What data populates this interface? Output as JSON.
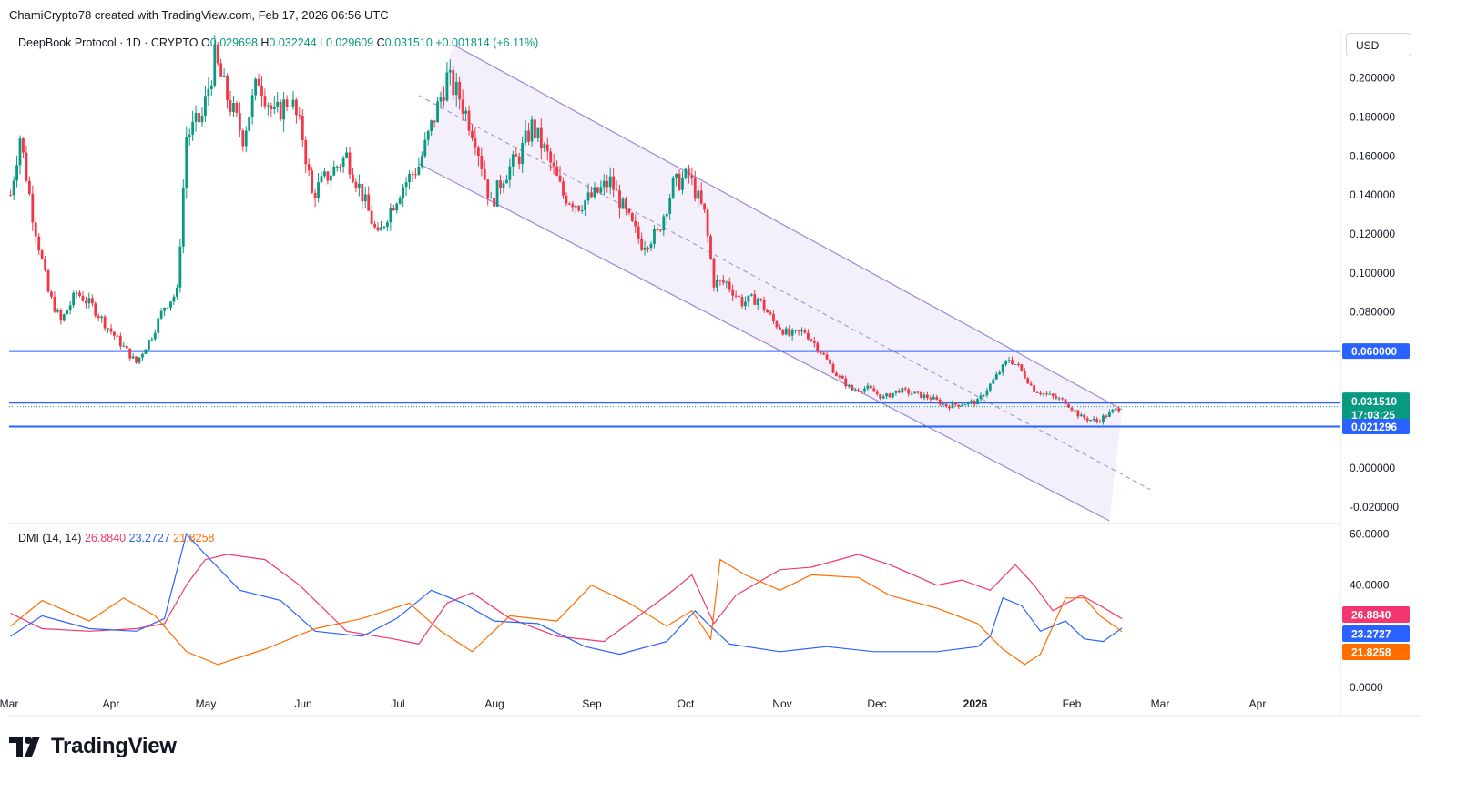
{
  "header": {
    "attribution": "ChamiCrypto78 created with TradingView.com, Feb 17, 2026 06:56 UTC",
    "currency_button": "USD",
    "brand": "TradingView"
  },
  "legend": {
    "symbol": "DeepBook Protocol · 1D · CRYPTO",
    "o_label": "O",
    "o_value": "0.029698",
    "h_label": "H",
    "h_value": "0.032244",
    "l_label": "L",
    "l_value": "0.029609",
    "c_label": "C",
    "c_value": "0.031510",
    "change": "+0.001814 (+6.11%)"
  },
  "dmi_legend": {
    "name": "DMI (14, 14)",
    "adx": "26.8840",
    "plus_di": "23.2727",
    "minus_di": "21.8258"
  },
  "chart_data": [
    {
      "type": "candlestick",
      "title": "DeepBook Protocol · 1D · CRYPTO",
      "xlabel": "",
      "ylabel": "",
      "x_ticks": [
        "Mar",
        "Apr",
        "May",
        "Jun",
        "Jul",
        "Aug",
        "Sep",
        "Oct",
        "Nov",
        "Dec",
        "2026",
        "Feb",
        "Mar",
        "Apr"
      ],
      "y_ticks": [
        "0.200000",
        "0.180000",
        "0.160000",
        "0.140000",
        "0.120000",
        "0.100000",
        "0.080000",
        "0.060000",
        "0.000000",
        "-0.020000"
      ],
      "ylim": [
        -0.027,
        0.225
      ],
      "grid": false,
      "colors": {
        "up": "#089981",
        "down": "#f23645",
        "level": "#2962ff",
        "channel": "#9c88d8",
        "channel_fill": "#f3f0fb"
      },
      "price_labels": [
        {
          "value": "0.060000",
          "color": "#2962ff"
        },
        {
          "value": "0.033541",
          "color": "#2962ff"
        },
        {
          "value": "0.031510",
          "color": "#089981"
        },
        {
          "value": "17:03:25",
          "color": "#089981"
        },
        {
          "value": "0.021296",
          "color": "#2962ff"
        }
      ],
      "horizontal_levels": [
        0.06,
        0.033541,
        0.021296
      ],
      "last_price": 0.03151,
      "descending_channel": {
        "upper": [
          [
            "2025-07-19",
            0.217
          ],
          [
            "2026-02-17",
            0.03
          ]
        ],
        "middle": [
          [
            "2025-07-08",
            0.191
          ],
          [
            "2026-02-26",
            -0.011
          ]
        ],
        "lower": [
          [
            "2025-07-08",
            0.156
          ],
          [
            "2026-02-13",
            -0.027
          ]
        ]
      },
      "close_series": [
        [
          "2025-02-28",
          0.14
        ],
        [
          "2025-03-03",
          0.17
        ],
        [
          "2025-03-07",
          0.13
        ],
        [
          "2025-03-12",
          0.09
        ],
        [
          "2025-03-16",
          0.075
        ],
        [
          "2025-03-21",
          0.09
        ],
        [
          "2025-03-26",
          0.083
        ],
        [
          "2025-03-31",
          0.072
        ],
        [
          "2025-04-04",
          0.064
        ],
        [
          "2025-04-09",
          0.054
        ],
        [
          "2025-04-14",
          0.068
        ],
        [
          "2025-04-18",
          0.083
        ],
        [
          "2025-04-22",
          0.09
        ],
        [
          "2025-04-25",
          0.17
        ],
        [
          "2025-04-30",
          0.18
        ],
        [
          "2025-05-04",
          0.21
        ],
        [
          "2025-05-08",
          0.19
        ],
        [
          "2025-05-13",
          0.17
        ],
        [
          "2025-05-18",
          0.2
        ],
        [
          "2025-05-23",
          0.18
        ],
        [
          "2025-05-28",
          0.19
        ],
        [
          "2025-06-01",
          0.17
        ],
        [
          "2025-06-04",
          0.14
        ],
        [
          "2025-06-09",
          0.15
        ],
        [
          "2025-06-15",
          0.16
        ],
        [
          "2025-06-20",
          0.14
        ],
        [
          "2025-06-25",
          0.118
        ],
        [
          "2025-06-28",
          0.13
        ],
        [
          "2025-07-03",
          0.145
        ],
        [
          "2025-07-08",
          0.155
        ],
        [
          "2025-07-13",
          0.18
        ],
        [
          "2025-07-17",
          0.2
        ],
        [
          "2025-07-21",
          0.19
        ],
        [
          "2025-07-26",
          0.17
        ],
        [
          "2025-07-31",
          0.135
        ],
        [
          "2025-08-04",
          0.15
        ],
        [
          "2025-08-09",
          0.16
        ],
        [
          "2025-08-13",
          0.175
        ],
        [
          "2025-08-18",
          0.16
        ],
        [
          "2025-08-23",
          0.14
        ],
        [
          "2025-08-28",
          0.135
        ],
        [
          "2025-09-02",
          0.14
        ],
        [
          "2025-09-07",
          0.147
        ],
        [
          "2025-09-12",
          0.13
        ],
        [
          "2025-09-17",
          0.115
        ],
        [
          "2025-09-22",
          0.12
        ],
        [
          "2025-09-27",
          0.145
        ],
        [
          "2025-10-02",
          0.15
        ],
        [
          "2025-10-07",
          0.13
        ],
        [
          "2025-10-10",
          0.095
        ],
        [
          "2025-10-14",
          0.095
        ],
        [
          "2025-10-19",
          0.085
        ],
        [
          "2025-10-24",
          0.087
        ],
        [
          "2025-10-29",
          0.075
        ],
        [
          "2025-11-03",
          0.068
        ],
        [
          "2025-11-08",
          0.07
        ],
        [
          "2025-11-13",
          0.06
        ],
        [
          "2025-11-18",
          0.048
        ],
        [
          "2025-11-23",
          0.04
        ],
        [
          "2025-11-28",
          0.041
        ],
        [
          "2025-12-03",
          0.036
        ],
        [
          "2025-12-08",
          0.04
        ],
        [
          "2025-12-13",
          0.038
        ],
        [
          "2025-12-18",
          0.036
        ],
        [
          "2025-12-23",
          0.032
        ],
        [
          "2025-12-28",
          0.033
        ],
        [
          "2026-01-02",
          0.034
        ],
        [
          "2026-01-07",
          0.045
        ],
        [
          "2026-01-12",
          0.056
        ],
        [
          "2026-01-15",
          0.052
        ],
        [
          "2026-01-20",
          0.04
        ],
        [
          "2026-01-25",
          0.037
        ],
        [
          "2026-01-30",
          0.034
        ],
        [
          "2026-02-04",
          0.026
        ],
        [
          "2026-02-09",
          0.024
        ],
        [
          "2026-02-14",
          0.029
        ],
        [
          "2026-02-17",
          0.03151
        ]
      ]
    },
    {
      "type": "line",
      "title": "DMI (14, 14)",
      "xlabel": "",
      "ylabel": "",
      "ylim": [
        -1,
        63
      ],
      "y_ticks": [
        "60.0000",
        "40.0000",
        "0.0000"
      ],
      "grid": false,
      "series": [
        {
          "name": "26.8840",
          "color": "#f23770",
          "points": [
            [
              "2025-02-28",
              29
            ],
            [
              "2025-03-10",
              23
            ],
            [
              "2025-03-25",
              22
            ],
            [
              "2025-04-09",
              23
            ],
            [
              "2025-04-18",
              25
            ],
            [
              "2025-04-25",
              40
            ],
            [
              "2025-05-01",
              50
            ],
            [
              "2025-05-08",
              52
            ],
            [
              "2025-05-20",
              50
            ],
            [
              "2025-05-31",
              40
            ],
            [
              "2025-06-15",
              22
            ],
            [
              "2025-06-30",
              19
            ],
            [
              "2025-07-08",
              17
            ],
            [
              "2025-07-17",
              33
            ],
            [
              "2025-07-25",
              37
            ],
            [
              "2025-08-06",
              27
            ],
            [
              "2025-08-21",
              20
            ],
            [
              "2025-09-05",
              18
            ],
            [
              "2025-09-25",
              36
            ],
            [
              "2025-10-03",
              44
            ],
            [
              "2025-10-10",
              25
            ],
            [
              "2025-10-17",
              36
            ],
            [
              "2025-10-31",
              46
            ],
            [
              "2025-11-10",
              47
            ],
            [
              "2025-11-25",
              52
            ],
            [
              "2025-12-05",
              48
            ],
            [
              "2025-12-20",
              40
            ],
            [
              "2025-12-28",
              42
            ],
            [
              "2026-01-06",
              38
            ],
            [
              "2026-01-14",
              48
            ],
            [
              "2026-01-20",
              40
            ],
            [
              "2026-01-26",
              30
            ],
            [
              "2026-02-04",
              36
            ],
            [
              "2026-02-10",
              32
            ],
            [
              "2026-02-17",
              26.884
            ]
          ]
        },
        {
          "name": "23.2727",
          "color": "#2962ff",
          "points": [
            [
              "2025-02-28",
              20
            ],
            [
              "2025-03-10",
              28
            ],
            [
              "2025-03-25",
              23
            ],
            [
              "2025-04-09",
              22
            ],
            [
              "2025-04-18",
              27
            ],
            [
              "2025-04-25",
              60
            ],
            [
              "2025-05-01",
              52
            ],
            [
              "2025-05-12",
              38
            ],
            [
              "2025-05-25",
              34
            ],
            [
              "2025-06-05",
              22
            ],
            [
              "2025-06-20",
              20
            ],
            [
              "2025-07-01",
              27
            ],
            [
              "2025-07-12",
              38
            ],
            [
              "2025-07-22",
              33
            ],
            [
              "2025-08-01",
              26
            ],
            [
              "2025-08-15",
              25
            ],
            [
              "2025-08-30",
              16
            ],
            [
              "2025-09-10",
              13
            ],
            [
              "2025-09-25",
              18
            ],
            [
              "2025-10-04",
              30
            ],
            [
              "2025-10-08",
              25
            ],
            [
              "2025-10-15",
              17
            ],
            [
              "2025-10-31",
              14
            ],
            [
              "2025-11-15",
              16
            ],
            [
              "2025-11-30",
              14
            ],
            [
              "2025-12-20",
              14
            ],
            [
              "2026-01-02",
              16
            ],
            [
              "2026-01-06",
              20
            ],
            [
              "2026-01-10",
              35
            ],
            [
              "2026-01-16",
              32
            ],
            [
              "2026-01-22",
              22
            ],
            [
              "2026-01-30",
              26
            ],
            [
              "2026-02-05",
              19
            ],
            [
              "2026-02-11",
              18
            ],
            [
              "2026-02-17",
              23.2727
            ]
          ]
        },
        {
          "name": "21.8258",
          "color": "#ff6d00",
          "points": [
            [
              "2025-02-28",
              24
            ],
            [
              "2025-03-10",
              34
            ],
            [
              "2025-03-25",
              26
            ],
            [
              "2025-04-05",
              35
            ],
            [
              "2025-04-15",
              28
            ],
            [
              "2025-04-25",
              14
            ],
            [
              "2025-05-05",
              9
            ],
            [
              "2025-05-20",
              15
            ],
            [
              "2025-06-05",
              23
            ],
            [
              "2025-06-20",
              27
            ],
            [
              "2025-07-05",
              33
            ],
            [
              "2025-07-15",
              22
            ],
            [
              "2025-07-25",
              14
            ],
            [
              "2025-08-06",
              28
            ],
            [
              "2025-08-21",
              26
            ],
            [
              "2025-09-01",
              40
            ],
            [
              "2025-09-13",
              33
            ],
            [
              "2025-09-25",
              24
            ],
            [
              "2025-10-03",
              30
            ],
            [
              "2025-10-09",
              19
            ],
            [
              "2025-10-12",
              50
            ],
            [
              "2025-10-20",
              44
            ],
            [
              "2025-10-31",
              38
            ],
            [
              "2025-11-10",
              44
            ],
            [
              "2025-11-25",
              43
            ],
            [
              "2025-12-05",
              36
            ],
            [
              "2025-12-20",
              31
            ],
            [
              "2026-01-02",
              25
            ],
            [
              "2026-01-10",
              15
            ],
            [
              "2026-01-17",
              9
            ],
            [
              "2026-01-22",
              13
            ],
            [
              "2026-01-30",
              35
            ],
            [
              "2026-02-05",
              35
            ],
            [
              "2026-02-10",
              28
            ],
            [
              "2026-02-17",
              21.8258
            ]
          ]
        }
      ],
      "value_labels": [
        {
          "value": "26.8840",
          "color": "#f23770"
        },
        {
          "value": "23.2727",
          "color": "#2962ff"
        },
        {
          "value": "21.8258",
          "color": "#ff6d00"
        }
      ]
    }
  ]
}
